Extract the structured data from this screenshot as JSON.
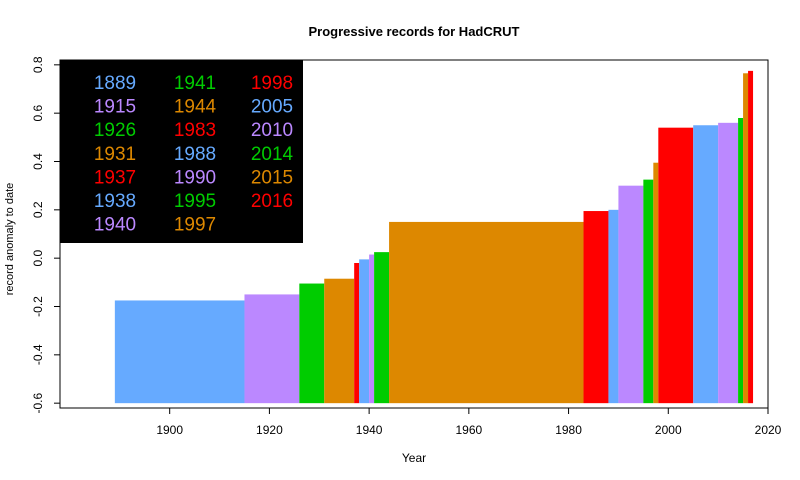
{
  "chart_data": {
    "type": "bar",
    "title": "Progressive records for HadCRUT",
    "xlabel": "Year",
    "ylabel": "record anomaly to date",
    "xlim": [
      1878,
      2020
    ],
    "ylim": [
      -0.62,
      0.82
    ],
    "baseline": -0.6,
    "xticks": [
      1900,
      1920,
      1940,
      1960,
      1980,
      2000,
      2020
    ],
    "yticks": [
      -0.6,
      -0.4,
      -0.2,
      0.0,
      0.2,
      0.4,
      0.6,
      0.8
    ],
    "ytick_labels": [
      "-0.6",
      "-0.4",
      "-0.2",
      "0.0",
      "0.2",
      "0.4",
      "0.6",
      "0.8"
    ],
    "grid": false,
    "legend_position": "top-left",
    "records": [
      {
        "year": 1889,
        "value": -0.175,
        "color": "#66aaff"
      },
      {
        "year": 1915,
        "value": -0.15,
        "color": "#bb88ff"
      },
      {
        "year": 1926,
        "value": -0.105,
        "color": "#00cc00"
      },
      {
        "year": 1931,
        "value": -0.085,
        "color": "#dd8800"
      },
      {
        "year": 1937,
        "value": -0.02,
        "color": "#ff0000"
      },
      {
        "year": 1938,
        "value": -0.005,
        "color": "#66aaff"
      },
      {
        "year": 1940,
        "value": 0.015,
        "color": "#bb88ff"
      },
      {
        "year": 1941,
        "value": 0.025,
        "color": "#00cc00"
      },
      {
        "year": 1944,
        "value": 0.15,
        "color": "#dd8800"
      },
      {
        "year": 1983,
        "value": 0.195,
        "color": "#ff0000"
      },
      {
        "year": 1988,
        "value": 0.2,
        "color": "#66aaff"
      },
      {
        "year": 1990,
        "value": 0.3,
        "color": "#bb88ff"
      },
      {
        "year": 1995,
        "value": 0.325,
        "color": "#00cc00"
      },
      {
        "year": 1997,
        "value": 0.395,
        "color": "#dd8800"
      },
      {
        "year": 1998,
        "value": 0.54,
        "color": "#ff0000"
      },
      {
        "year": 2005,
        "value": 0.55,
        "color": "#66aaff"
      },
      {
        "year": 2010,
        "value": 0.56,
        "color": "#bb88ff"
      },
      {
        "year": 2014,
        "value": 0.58,
        "color": "#00cc00"
      },
      {
        "year": 2015,
        "value": 0.765,
        "color": "#dd8800"
      },
      {
        "year": 2016,
        "value": 0.775,
        "color": "#ff0000"
      }
    ],
    "end_year": 2017,
    "legend_background": "#000000"
  }
}
